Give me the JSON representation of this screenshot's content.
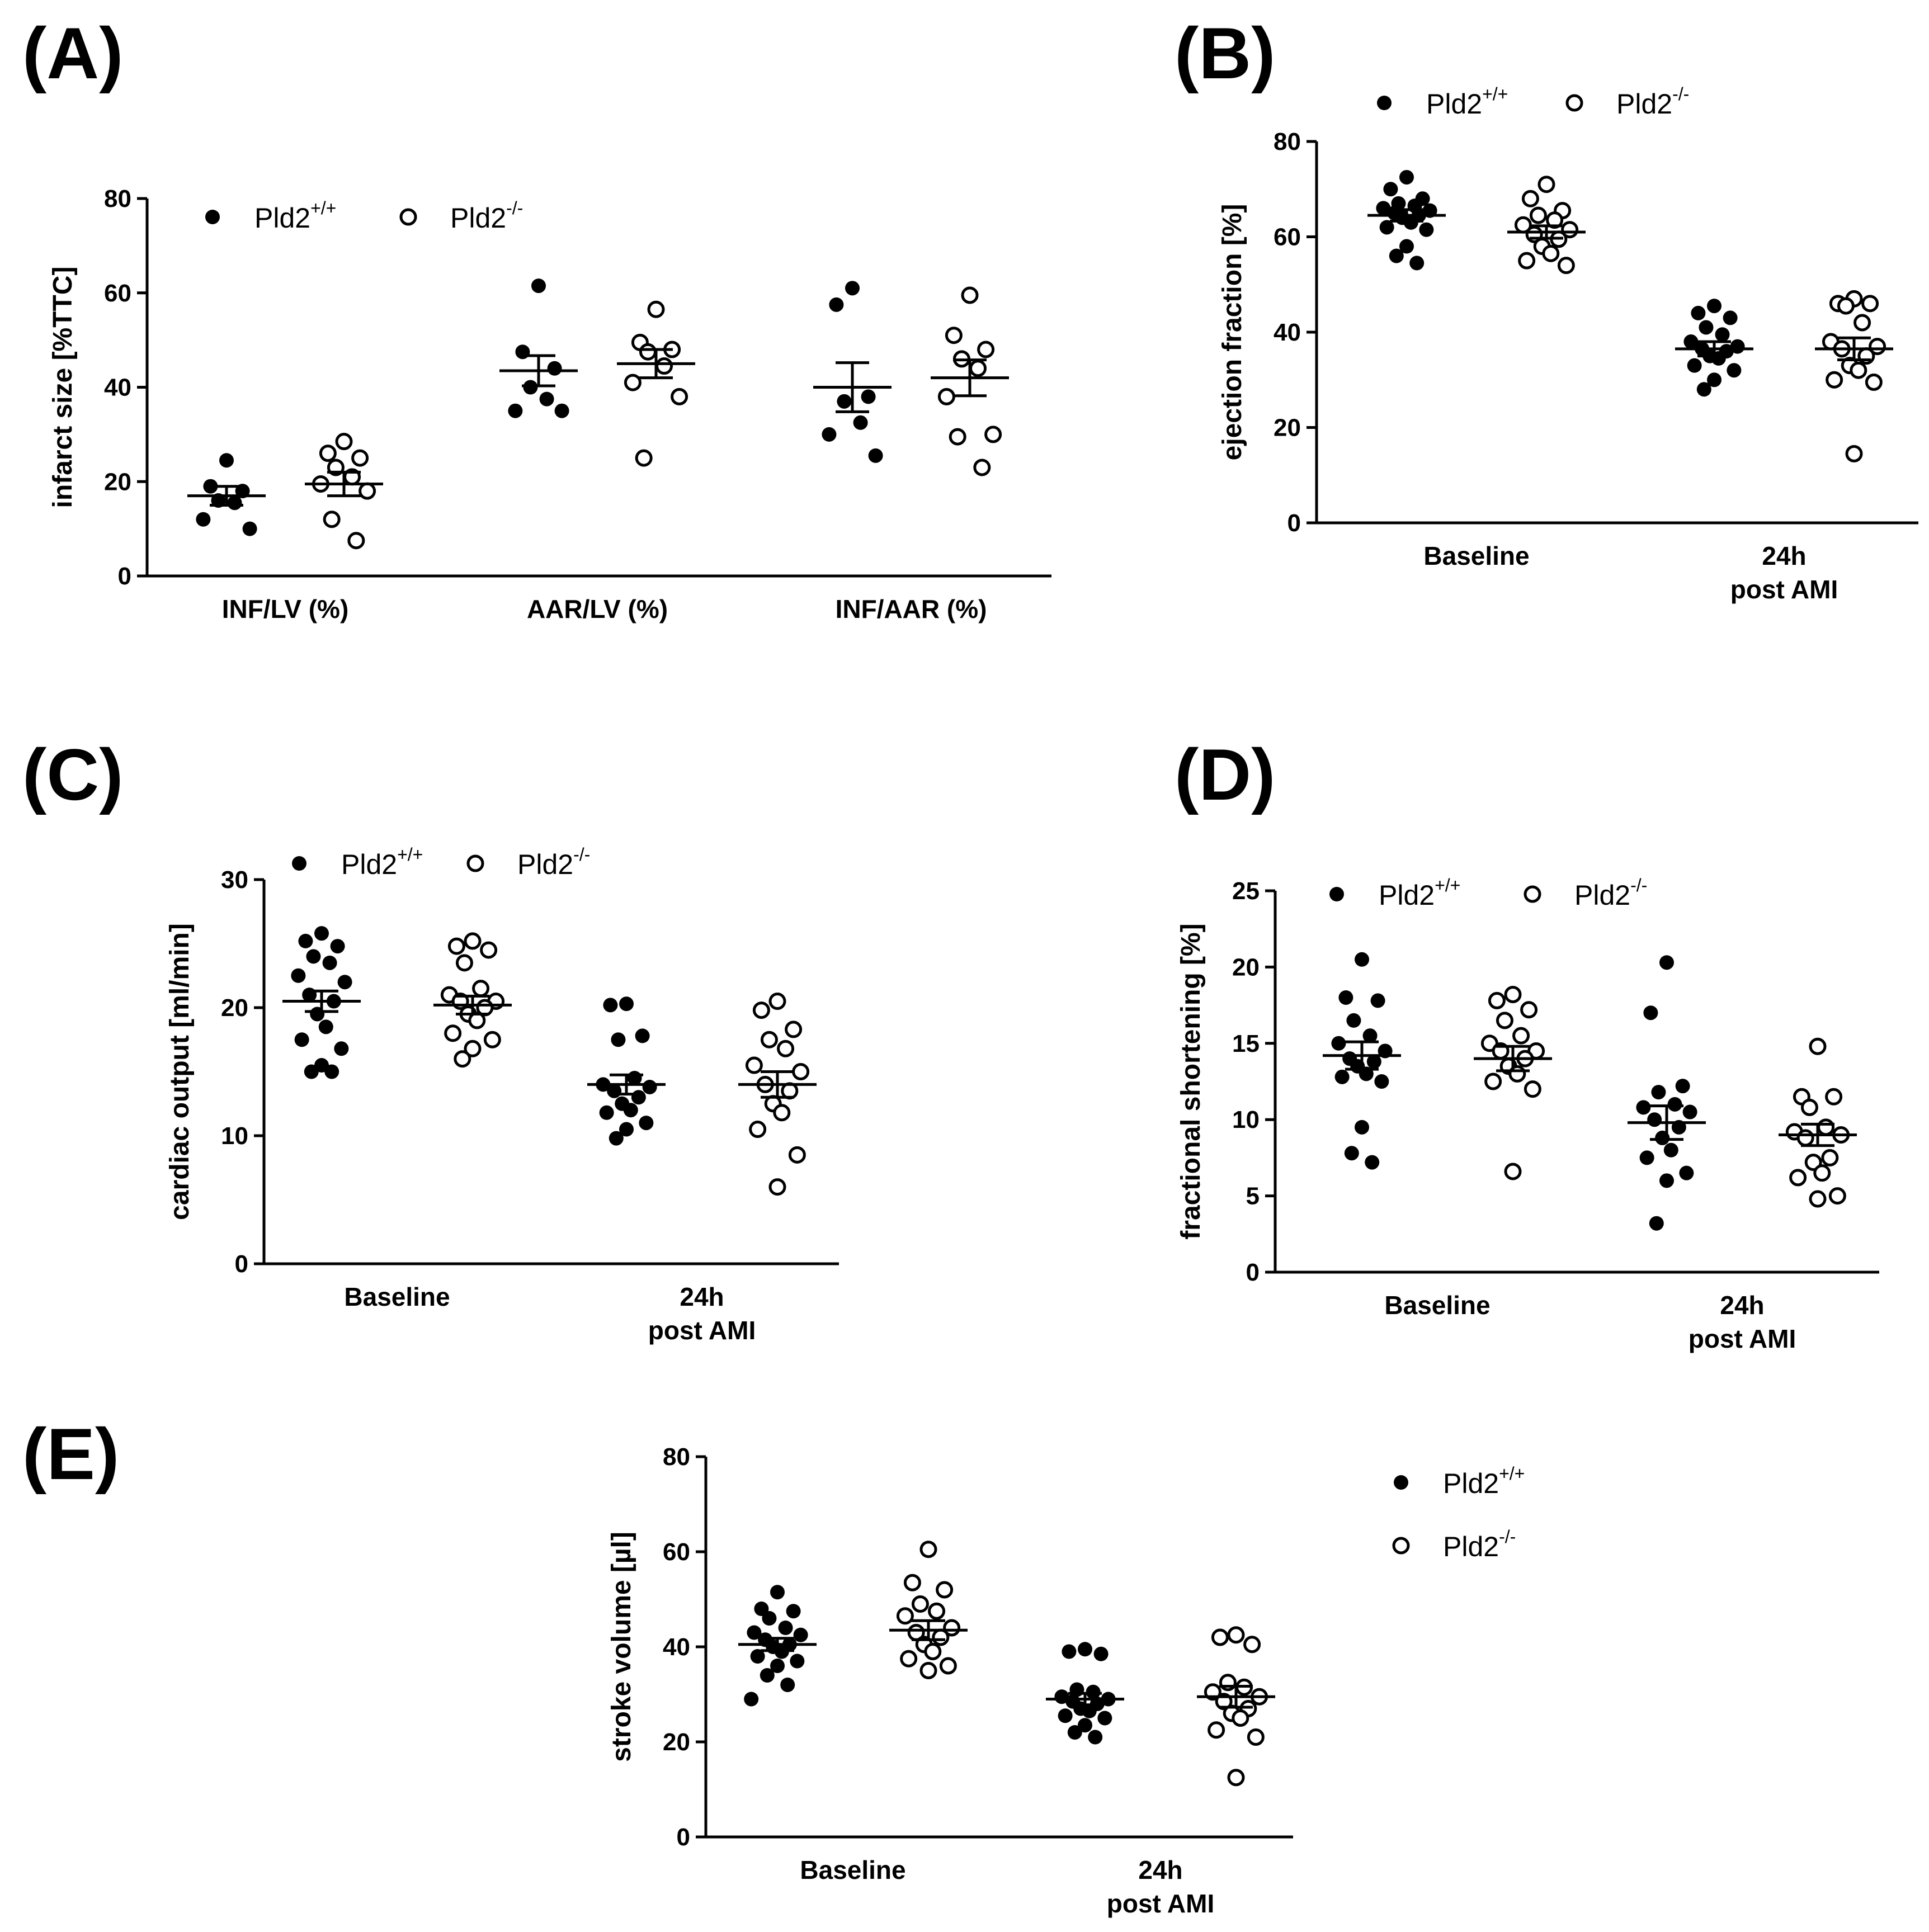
{
  "chart_data": [
    {
      "id": "A",
      "panel_label": "(A)",
      "type": "scatter",
      "ylabel": "infarct size [%TTC]",
      "ylim": [
        0,
        80
      ],
      "yticks": [
        0,
        20,
        40,
        60,
        80
      ],
      "categories": [
        {
          "lines": [
            "INF/LV (%)"
          ]
        },
        {
          "lines": [
            "AAR/LV (%)"
          ]
        },
        {
          "lines": [
            "INF/AAR (%)"
          ]
        }
      ],
      "legend_position": "top-left-inside",
      "series": [
        {
          "name": "Pld2",
          "sup": "+/+",
          "marker": "filled",
          "points": [
            [
              24.5,
              19,
              18,
              15.5,
              16,
              12,
              10
            ],
            [
              61.5,
              47.5,
              44,
              40,
              37.5,
              35,
              35
            ],
            [
              61,
              57.5,
              38,
              37,
              32.5,
              30,
              25.5
            ]
          ],
          "mean": [
            17,
            43.5,
            40
          ],
          "sem": [
            2,
            3.2,
            5.2
          ]
        },
        {
          "name": "Pld2",
          "sup": "-/-",
          "marker": "open",
          "points": [
            [
              28.5,
              26,
              25,
              23,
              21,
              19.5,
              18,
              12,
              7.5
            ],
            [
              56.5,
              49.5,
              48,
              47.5,
              44.5,
              41,
              38,
              25
            ],
            [
              59.5,
              51,
              48,
              46,
              44,
              38,
              30,
              29.5,
              23
            ]
          ],
          "mean": [
            19.5,
            45,
            42
          ],
          "sem": [
            2.5,
            3,
            3.8
          ]
        }
      ]
    },
    {
      "id": "B",
      "panel_label": "(B)",
      "type": "scatter",
      "ylabel": "ejection fraction [%]",
      "ylim": [
        0,
        80
      ],
      "yticks": [
        0,
        20,
        40,
        60,
        80
      ],
      "categories": [
        {
          "lines": [
            "Baseline"
          ]
        },
        {
          "lines": [
            "24h",
            "post AMI"
          ]
        }
      ],
      "legend_position": "top-outside",
      "series": [
        {
          "name": "Pld2",
          "sup": "+/+",
          "marker": "filled",
          "points": [
            [
              72.5,
              70,
              68,
              67,
              66.5,
              66,
              65.5,
              65,
              64.5,
              64,
              63,
              62,
              61.5,
              58,
              56,
              54.5
            ],
            [
              45.5,
              44,
              43,
              41,
              39.5,
              38,
              37,
              36.5,
              36,
              35,
              34.5,
              33,
              32,
              30,
              28
            ]
          ],
          "mean": [
            64.5,
            36.5
          ],
          "sem": [
            1.2,
            1.5
          ]
        },
        {
          "name": "Pld2",
          "sup": "-/-",
          "marker": "open",
          "points": [
            [
              71,
              68,
              65.5,
              64.5,
              63.5,
              62.5,
              61.5,
              60.5,
              59.5,
              58,
              56.5,
              55,
              54
            ],
            [
              47,
              46,
              46,
              45.5,
              42,
              38,
              37,
              36.5,
              35,
              33,
              32,
              30,
              29.5,
              14.5
            ]
          ],
          "mean": [
            61,
            36.5
          ],
          "sem": [
            1.3,
            2.3
          ]
        }
      ]
    },
    {
      "id": "C",
      "panel_label": "(C)",
      "type": "scatter",
      "ylabel": "cardiac output [ml/min]",
      "ylim": [
        0,
        30
      ],
      "yticks": [
        0,
        10,
        20,
        30
      ],
      "categories": [
        {
          "lines": [
            "Baseline"
          ]
        },
        {
          "lines": [
            "24h",
            "post AMI"
          ]
        }
      ],
      "legend_position": "top-left-inside",
      "series": [
        {
          "name": "Pld2",
          "sup": "+/+",
          "marker": "filled",
          "points": [
            [
              25.8,
              25.2,
              24.8,
              24,
              23.5,
              22.5,
              22,
              21,
              20.5,
              19.5,
              18.5,
              17.5,
              16.8,
              15.5,
              15,
              15
            ],
            [
              20.3,
              20.2,
              17.8,
              17.5,
              14.5,
              14,
              13.8,
              13.5,
              13,
              12.5,
              12,
              11.8,
              11,
              10.5,
              9.8
            ]
          ],
          "mean": [
            20.5,
            14
          ],
          "sem": [
            0.8,
            0.75
          ]
        },
        {
          "name": "Pld2",
          "sup": "-/-",
          "marker": "open",
          "points": [
            [
              25.2,
              24.8,
              24.5,
              23.5,
              21.5,
              21,
              20.5,
              20.5,
              20,
              19.5,
              19,
              18,
              17.5,
              16.8,
              16
            ],
            [
              20.5,
              19.8,
              18.3,
              17.5,
              16.8,
              15.5,
              15,
              14,
              13.5,
              12.5,
              11.8,
              10.5,
              8.5,
              6
            ]
          ],
          "mean": [
            20.2,
            14
          ],
          "sem": [
            0.7,
            1
          ]
        }
      ]
    },
    {
      "id": "D",
      "panel_label": "(D)",
      "type": "scatter",
      "ylabel": "fractional shortening [%]",
      "ylim": [
        0,
        25
      ],
      "yticks": [
        0,
        5,
        10,
        15,
        20,
        25
      ],
      "categories": [
        {
          "lines": [
            "Baseline"
          ]
        },
        {
          "lines": [
            "24h",
            "post AMI"
          ]
        }
      ],
      "legend_position": "top-inside",
      "series": [
        {
          "name": "Pld2",
          "sup": "+/+",
          "marker": "filled",
          "points": [
            [
              20.5,
              18,
              17.8,
              16.5,
              15.5,
              15,
              14.5,
              14,
              13.8,
              13.5,
              13,
              12.8,
              12.5,
              9.5,
              7.8,
              7.2
            ],
            [
              20.3,
              17,
              12.2,
              11.8,
              11,
              10.8,
              10.5,
              10,
              9.5,
              8.8,
              8,
              7.5,
              6.5,
              6,
              3.2
            ]
          ],
          "mean": [
            14.2,
            9.8
          ],
          "sem": [
            0.9,
            1.1
          ]
        },
        {
          "name": "Pld2",
          "sup": "-/-",
          "marker": "open",
          "points": [
            [
              18.2,
              17.8,
              17.2,
              16.5,
              15.5,
              15,
              14.5,
              14.5,
              14,
              13.5,
              13,
              12.5,
              12,
              6.6
            ],
            [
              14.8,
              11.5,
              11.5,
              10.8,
              9.5,
              9.2,
              9,
              8.8,
              7.5,
              7.2,
              6.5,
              6.2,
              5,
              4.8
            ]
          ],
          "mean": [
            14,
            9
          ],
          "sem": [
            0.8,
            0.7
          ]
        }
      ]
    },
    {
      "id": "E",
      "panel_label": "(E)",
      "type": "scatter",
      "ylabel": "stroke volume [µl]",
      "ylim": [
        0,
        80
      ],
      "yticks": [
        0,
        20,
        40,
        60,
        80
      ],
      "categories": [
        {
          "lines": [
            "Baseline"
          ]
        },
        {
          "lines": [
            "24h",
            "post AMI"
          ]
        }
      ],
      "legend_position": "right-outside",
      "series": [
        {
          "name": "Pld2",
          "sup": "+/+",
          "marker": "filled",
          "points": [
            [
              51.5,
              48,
              47.5,
              46,
              44,
              43,
              42.5,
              41.5,
              40.5,
              40,
              39,
              38,
              37,
              36,
              34,
              32,
              29
            ],
            [
              39.5,
              39,
              38.5,
              31,
              30.5,
              29.5,
              29,
              28.5,
              28,
              27,
              26.5,
              25.5,
              25,
              23.5,
              22,
              21
            ]
          ],
          "mean": [
            40.5,
            29
          ],
          "sem": [
            1.3,
            1.2
          ]
        },
        {
          "name": "Pld2",
          "sup": "-/-",
          "marker": "open",
          "points": [
            [
              60.5,
              53.5,
              52,
              49,
              47.5,
              46.5,
              44,
              43,
              42,
              40.5,
              39,
              37.5,
              36,
              35
            ],
            [
              42.5,
              42,
              40.5,
              32.5,
              31.5,
              30.5,
              29.5,
              28.5,
              27,
              26,
              25,
              22.5,
              21,
              12.5
            ]
          ],
          "mean": [
            43.5,
            29.5
          ],
          "sem": [
            2,
            2.2
          ]
        }
      ]
    }
  ]
}
